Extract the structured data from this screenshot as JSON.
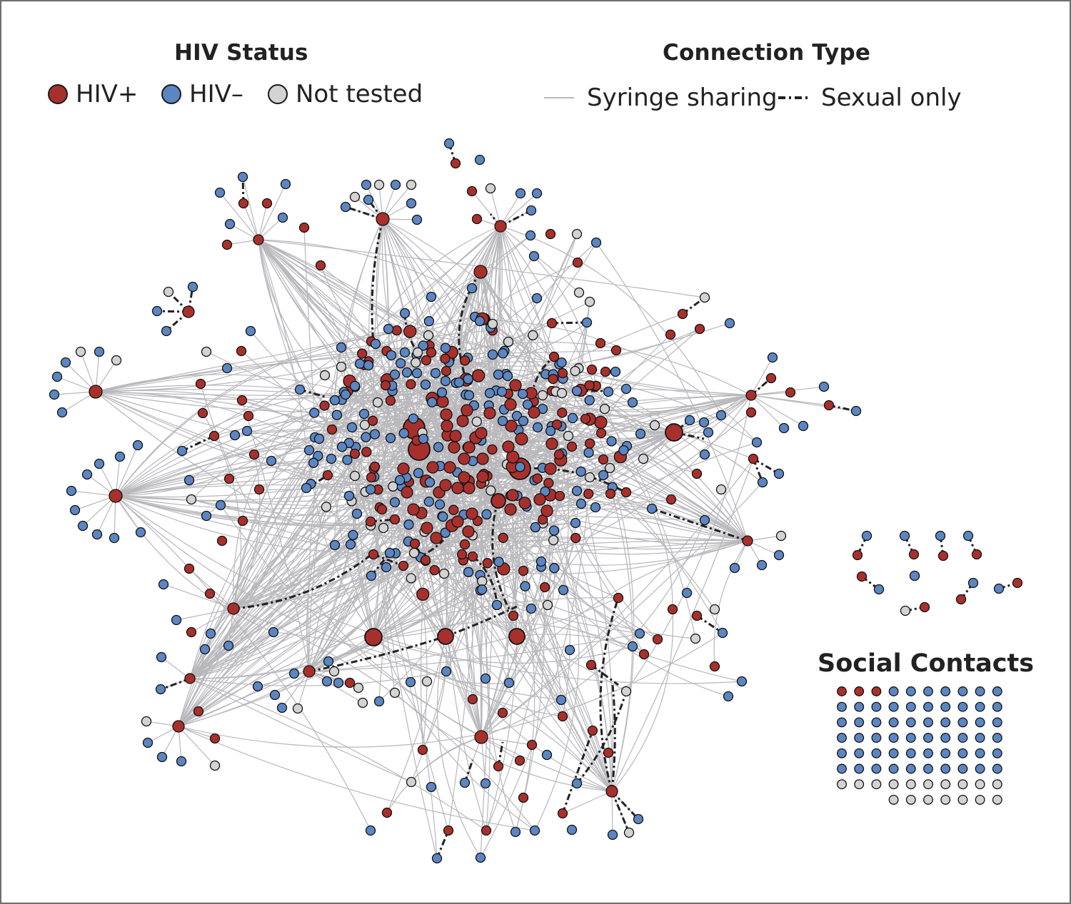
{
  "legend": {
    "hiv_status": {
      "title": "HIV Status",
      "items": [
        {
          "label": "HIV+",
          "color": "#a8302c"
        },
        {
          "label": "HIV–",
          "color": "#5b86c2"
        },
        {
          "label": "Not tested",
          "color": "#d3d3d3"
        }
      ]
    },
    "connection_type": {
      "title": "Connection Type",
      "items": [
        {
          "label": "Syringe sharing",
          "style": "solid-gray"
        },
        {
          "label": "Sexual only",
          "style": "dash-dot-black"
        }
      ]
    }
  },
  "social_contacts": {
    "title": "Social Contacts",
    "counts": {
      "hiv_positive": 3,
      "hiv_negative": 57,
      "not_tested": 17
    }
  },
  "colors": {
    "hiv_positive": "#a8302c",
    "hiv_negative": "#5b86c2",
    "not_tested": "#d3d3d3",
    "syringe_edge": "#b8b8bc",
    "sexual_edge": "#222222"
  }
}
